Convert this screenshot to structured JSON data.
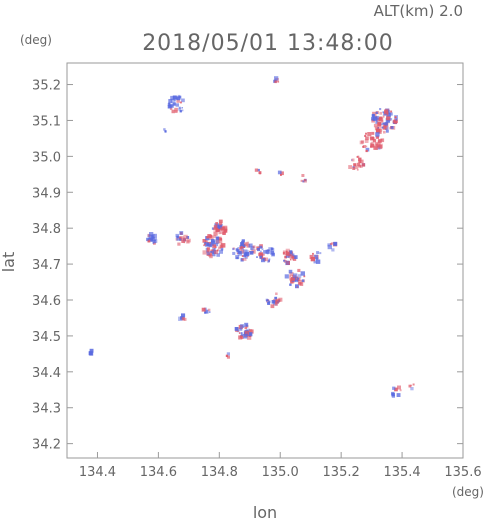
{
  "header": {
    "altitude_label": "ALT(km)  2.0",
    "timestamp": "2018/05/01 13:48:00"
  },
  "chart_data": {
    "type": "scatter",
    "xlabel": "lon",
    "ylabel": "lat",
    "x_unit": "(deg)",
    "y_unit": "(deg)",
    "xlim": [
      134.3,
      135.6
    ],
    "ylim": [
      34.16,
      35.26
    ],
    "x_ticks": [
      "134.4",
      "134.6",
      "134.8",
      "135.0",
      "135.2",
      "135.4",
      "135.6"
    ],
    "y_ticks": [
      "34.2",
      "34.3",
      "34.4",
      "34.5",
      "34.6",
      "34.7",
      "34.8",
      "34.9",
      "35.0",
      "35.1",
      "35.2"
    ],
    "grid": false,
    "colors": {
      "positive": "#e05a6a",
      "negative": "#5a6ae0"
    },
    "clusters": [
      {
        "lon": 134.38,
        "lat": 34.455,
        "spread": 0.008,
        "n": 4,
        "mix": 0.0
      },
      {
        "lon": 134.665,
        "lat": 35.145,
        "spread": 0.025,
        "n": 30,
        "mix": 0.3
      },
      {
        "lon": 134.62,
        "lat": 35.07,
        "spread": 0.006,
        "n": 3,
        "mix": 0.2
      },
      {
        "lon": 134.99,
        "lat": 35.21,
        "spread": 0.008,
        "n": 6,
        "mix": 0.6
      },
      {
        "lon": 134.925,
        "lat": 34.955,
        "spread": 0.008,
        "n": 4,
        "mix": 0.9
      },
      {
        "lon": 135.0,
        "lat": 34.95,
        "spread": 0.006,
        "n": 3,
        "mix": 0.5
      },
      {
        "lon": 135.08,
        "lat": 34.94,
        "spread": 0.012,
        "n": 6,
        "mix": 0.8
      },
      {
        "lon": 135.34,
        "lat": 35.1,
        "spread": 0.035,
        "n": 80,
        "mix": 0.55
      },
      {
        "lon": 135.3,
        "lat": 35.04,
        "spread": 0.03,
        "n": 40,
        "mix": 0.8
      },
      {
        "lon": 135.25,
        "lat": 34.98,
        "spread": 0.02,
        "n": 18,
        "mix": 0.75
      },
      {
        "lon": 134.58,
        "lat": 34.77,
        "spread": 0.014,
        "n": 22,
        "mix": 0.35
      },
      {
        "lon": 134.68,
        "lat": 34.77,
        "spread": 0.018,
        "n": 20,
        "mix": 0.65
      },
      {
        "lon": 134.8,
        "lat": 34.8,
        "spread": 0.02,
        "n": 30,
        "mix": 0.6
      },
      {
        "lon": 134.78,
        "lat": 34.75,
        "spread": 0.03,
        "n": 60,
        "mix": 0.55
      },
      {
        "lon": 134.88,
        "lat": 34.74,
        "spread": 0.03,
        "n": 50,
        "mix": 0.45
      },
      {
        "lon": 134.95,
        "lat": 34.73,
        "spread": 0.025,
        "n": 35,
        "mix": 0.3
      },
      {
        "lon": 135.03,
        "lat": 34.72,
        "spread": 0.02,
        "n": 25,
        "mix": 0.6
      },
      {
        "lon": 135.05,
        "lat": 34.66,
        "spread": 0.025,
        "n": 30,
        "mix": 0.55
      },
      {
        "lon": 134.98,
        "lat": 34.6,
        "spread": 0.02,
        "n": 20,
        "mix": 0.4
      },
      {
        "lon": 135.12,
        "lat": 34.72,
        "spread": 0.015,
        "n": 10,
        "mix": 0.5
      },
      {
        "lon": 135.17,
        "lat": 34.75,
        "spread": 0.012,
        "n": 8,
        "mix": 0.4
      },
      {
        "lon": 134.76,
        "lat": 34.57,
        "spread": 0.01,
        "n": 8,
        "mix": 0.7
      },
      {
        "lon": 134.68,
        "lat": 34.55,
        "spread": 0.008,
        "n": 5,
        "mix": 0.7
      },
      {
        "lon": 134.88,
        "lat": 34.51,
        "spread": 0.022,
        "n": 35,
        "mix": 0.45
      },
      {
        "lon": 134.83,
        "lat": 34.445,
        "spread": 0.005,
        "n": 3,
        "mix": 0.9
      },
      {
        "lon": 135.38,
        "lat": 34.345,
        "spread": 0.015,
        "n": 8,
        "mix": 0.5
      },
      {
        "lon": 135.43,
        "lat": 34.36,
        "spread": 0.008,
        "n": 4,
        "mix": 0.6
      }
    ]
  }
}
